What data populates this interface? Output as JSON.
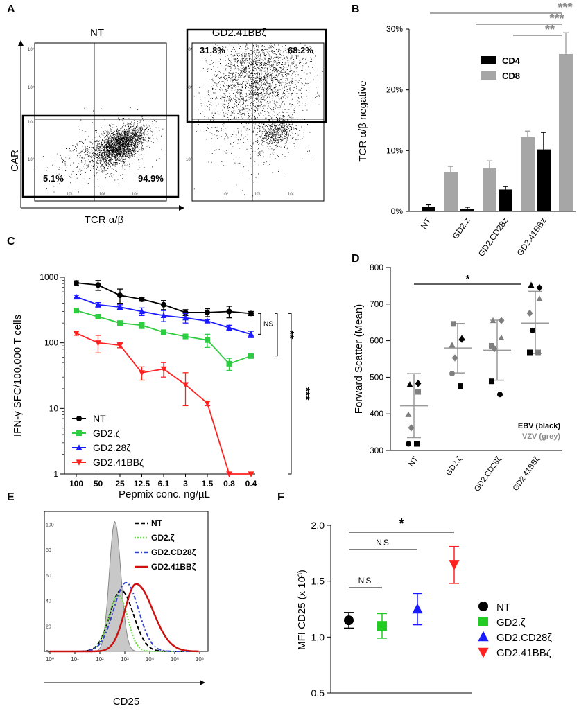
{
  "panels": {
    "A": "A",
    "B": "B",
    "C": "C",
    "D": "D",
    "E": "E",
    "F": "F"
  },
  "panelA": {
    "plots": [
      {
        "title": "NT",
        "q_left": "5.1%",
        "q_right": "94.9%"
      },
      {
        "title": "GD2.41BBζ",
        "q_left": "31.8%",
        "q_right": "68.2%"
      }
    ],
    "ylabel": "CAR",
    "xlabel": "TCR α/β",
    "log_ticks": [
      "10⁰",
      "10¹",
      "10²",
      "10³"
    ],
    "x_ticks": [
      "10⁰",
      "10¹",
      "10²",
      "10³"
    ]
  },
  "chart_data": [
    {
      "id": "B",
      "type": "bar",
      "categories": [
        "NT",
        "GD2.z",
        "GD2.CD28z",
        "GD2.41BBz"
      ],
      "series": [
        {
          "name": "CD4",
          "color": "#000000",
          "values": [
            0.7,
            0.4,
            3.6,
            10.2
          ],
          "errors": [
            0.4,
            0.3,
            0.5,
            2.8
          ]
        },
        {
          "name": "CD8",
          "color": "#a6a6a6",
          "values": [
            6.5,
            7.1,
            12.3,
            25.9
          ],
          "errors": [
            0.9,
            1.2,
            0.9,
            3.5
          ]
        }
      ],
      "ylabel": "TCR α/β negative",
      "ylim": [
        0,
        30
      ],
      "yticks": [
        0,
        10,
        20,
        30
      ],
      "ytick_labels": [
        "0%",
        "10%",
        "20%",
        "30%"
      ],
      "legend": "top-right",
      "significance": [
        {
          "from": "NT",
          "to": "GD2.41BBz",
          "label": "***"
        },
        {
          "from": "GD2.z",
          "to": "GD2.41BBz",
          "label": "***"
        },
        {
          "from": "GD2.CD28z",
          "to": "GD2.41BBz",
          "label": "**"
        }
      ]
    },
    {
      "id": "C",
      "type": "line",
      "yscale": "log",
      "categories": [
        "100",
        "50",
        "25",
        "12.5",
        "6.1",
        "3",
        "1.5",
        "0.8",
        "0.4"
      ],
      "series": [
        {
          "name": "NT",
          "color": "#000000",
          "marker": "circle",
          "values": [
            820,
            760,
            530,
            460,
            380,
            290,
            290,
            300,
            280
          ],
          "errors": [
            60,
            130,
            130,
            30,
            60,
            30,
            40,
            60,
            20
          ]
        },
        {
          "name": "GD2.ζ",
          "color": "#2ecc40",
          "marker": "square",
          "values": [
            310,
            250,
            200,
            185,
            145,
            125,
            110,
            48,
            63
          ],
          "errors": [
            20,
            15,
            15,
            20,
            10,
            10,
            25,
            10,
            5
          ]
        },
        {
          "name": "GD2.28ζ",
          "color": "#1a1aff",
          "marker": "triangle-up",
          "values": [
            500,
            380,
            350,
            300,
            260,
            240,
            215,
            170,
            135
          ],
          "errors": [
            30,
            30,
            30,
            40,
            50,
            40,
            10,
            15,
            15
          ]
        },
        {
          "name": "GD2.41BBζ",
          "color": "#ff2020",
          "marker": "triangle-down",
          "values": [
            140,
            100,
            92,
            35,
            40,
            23,
            12,
            1,
            1
          ],
          "errors": [
            10,
            30,
            8,
            8,
            10,
            12,
            1,
            0,
            0
          ]
        }
      ],
      "xlabel": "Pepmix conc. ng/µL",
      "ylabel": "IFN-γ SFC/100,000 T cells",
      "ylim": [
        1,
        1000
      ],
      "yticks": [
        1,
        10,
        100,
        1000
      ],
      "ytick_labels": [
        "1",
        "10",
        "100",
        "1000"
      ],
      "legend": "bottom-left",
      "significance": [
        {
          "between": "NT vs GD2.28ζ",
          "label": "NS"
        },
        {
          "between": "NT vs GD2.ζ",
          "label": "**"
        },
        {
          "between": "NT vs GD2.41BBζ",
          "label": "***"
        }
      ]
    },
    {
      "id": "D",
      "type": "scatter",
      "categories": [
        "NT",
        "GD2.ζ",
        "GD2.CD28ζ",
        "GD2.41BBζ"
      ],
      "groups": [
        {
          "mean": 422,
          "sd": [
            335,
            510
          ],
          "points": [
            {
              "v": 480,
              "shape": "triangle",
              "color": "#000000"
            },
            {
              "v": 483,
              "shape": "diamond",
              "color": "#000000"
            },
            {
              "v": 460,
              "shape": "square",
              "color": "#7f7f7f"
            },
            {
              "v": 398,
              "shape": "triangle",
              "color": "#7f7f7f"
            },
            {
              "v": 362,
              "shape": "diamond",
              "color": "#7f7f7f"
            },
            {
              "v": 318,
              "shape": "circle",
              "color": "#000000"
            },
            {
              "v": 318,
              "shape": "square",
              "color": "#000000"
            }
          ]
        },
        {
          "mean": 580,
          "sd": [
            512,
            647
          ],
          "points": [
            {
              "v": 646,
              "shape": "square",
              "color": "#7f7f7f"
            },
            {
              "v": 607,
              "shape": "triangle",
              "color": "#000000"
            },
            {
              "v": 604,
              "shape": "diamond",
              "color": "#000000"
            },
            {
              "v": 588,
              "shape": "triangle",
              "color": "#7f7f7f"
            },
            {
              "v": 553,
              "shape": "diamond",
              "color": "#7f7f7f"
            },
            {
              "v": 510,
              "shape": "circle",
              "color": "#7f7f7f"
            },
            {
              "v": 476,
              "shape": "square",
              "color": "#000000"
            }
          ]
        },
        {
          "mean": 574,
          "sd": [
            492,
            656
          ],
          "points": [
            {
              "v": 655,
              "shape": "triangle",
              "color": "#7f7f7f"
            },
            {
              "v": 655,
              "shape": "diamond",
              "color": "#7f7f7f"
            },
            {
              "v": 608,
              "shape": "triangle",
              "color": "#7f7f7f"
            },
            {
              "v": 586,
              "shape": "square",
              "color": "#7f7f7f"
            },
            {
              "v": 578,
              "shape": "diamond",
              "color": "#7f7f7f"
            },
            {
              "v": 489,
              "shape": "square",
              "color": "#000000"
            },
            {
              "v": 453,
              "shape": "circle",
              "color": "#000000"
            }
          ]
        },
        {
          "mean": 648,
          "sd": [
            565,
            735
          ],
          "points": [
            {
              "v": 752,
              "shape": "triangle",
              "color": "#000000"
            },
            {
              "v": 745,
              "shape": "diamond",
              "color": "#000000"
            },
            {
              "v": 715,
              "shape": "triangle",
              "color": "#7f7f7f"
            },
            {
              "v": 675,
              "shape": "diamond",
              "color": "#7f7f7f"
            },
            {
              "v": 628,
              "shape": "circle",
              "color": "#000000"
            },
            {
              "v": 568,
              "shape": "square",
              "color": "#000000"
            },
            {
              "v": 568,
              "shape": "square",
              "color": "#7f7f7f"
            }
          ]
        }
      ],
      "ylabel": "Forward Scatter (Mean)",
      "ylim": [
        300,
        800
      ],
      "yticks": [
        300,
        400,
        500,
        600,
        700,
        800
      ],
      "ytick_labels": [
        "300",
        "400",
        "500",
        "600",
        "700",
        "800"
      ],
      "legend_lines": [
        "EBV (black)",
        "VZV (grey)"
      ],
      "significance": [
        {
          "from": "NT",
          "to": "GD2.41BBζ",
          "label": "*"
        }
      ]
    },
    {
      "id": "E",
      "type": "area",
      "xlabel": "CD25",
      "xscale": "log",
      "xtick_labels": [
        "10⁰",
        "10¹",
        "10²",
        "10³",
        "10⁴",
        "10⁵",
        "10⁶"
      ],
      "yticks": [
        0,
        20,
        40,
        60,
        80,
        100
      ],
      "ytick_labels": [
        "0",
        "20",
        "40",
        "60",
        "80",
        "100"
      ],
      "series": [
        {
          "name": "NT",
          "color": "#000000",
          "style": "dashed"
        },
        {
          "name": "GD2.ζ",
          "color": "#66dd44",
          "style": "dotted"
        },
        {
          "name": "GD2.CD28ζ",
          "color": "#3344cc",
          "style": "dashdot"
        },
        {
          "name": "GD2.41BBζ",
          "color": "#cc1111",
          "style": "solid"
        }
      ],
      "legend": "top-right"
    },
    {
      "id": "F",
      "type": "scatter",
      "categories": [
        "NT",
        "GD2.ζ",
        "GD2.CD28ζ",
        "GD2.41BBζ"
      ],
      "series": [
        {
          "name": "NT",
          "color": "#000000",
          "marker": "circle",
          "value": 1.15,
          "errors": [
            1.08,
            1.22
          ]
        },
        {
          "name": "GD2.ζ",
          "color": "#22cc22",
          "marker": "square",
          "value": 1.1,
          "errors": [
            0.99,
            1.21
          ]
        },
        {
          "name": "GD2.CD28ζ",
          "color": "#1a1aff",
          "marker": "triangle-up",
          "value": 1.25,
          "errors": [
            1.11,
            1.39
          ]
        },
        {
          "name": "GD2.41BBζ",
          "color": "#ff2020",
          "marker": "triangle-down",
          "value": 1.65,
          "errors": [
            1.48,
            1.81
          ]
        }
      ],
      "ylabel": "MFI CD25 (x 10³)",
      "ylim": [
        0.5,
        2.0
      ],
      "yticks": [
        0.5,
        1.0,
        1.5,
        2.0
      ],
      "ytick_labels": [
        "0.5",
        "1.0",
        "1.5",
        "2.0"
      ],
      "legend": "right",
      "significance": [
        {
          "from": "NT",
          "to": "GD2.ζ",
          "label": "NS"
        },
        {
          "from": "NT",
          "to": "GD2.CD28ζ",
          "label": "NS"
        },
        {
          "from": "NT",
          "to": "GD2.41BBζ",
          "label": "*"
        }
      ]
    }
  ]
}
